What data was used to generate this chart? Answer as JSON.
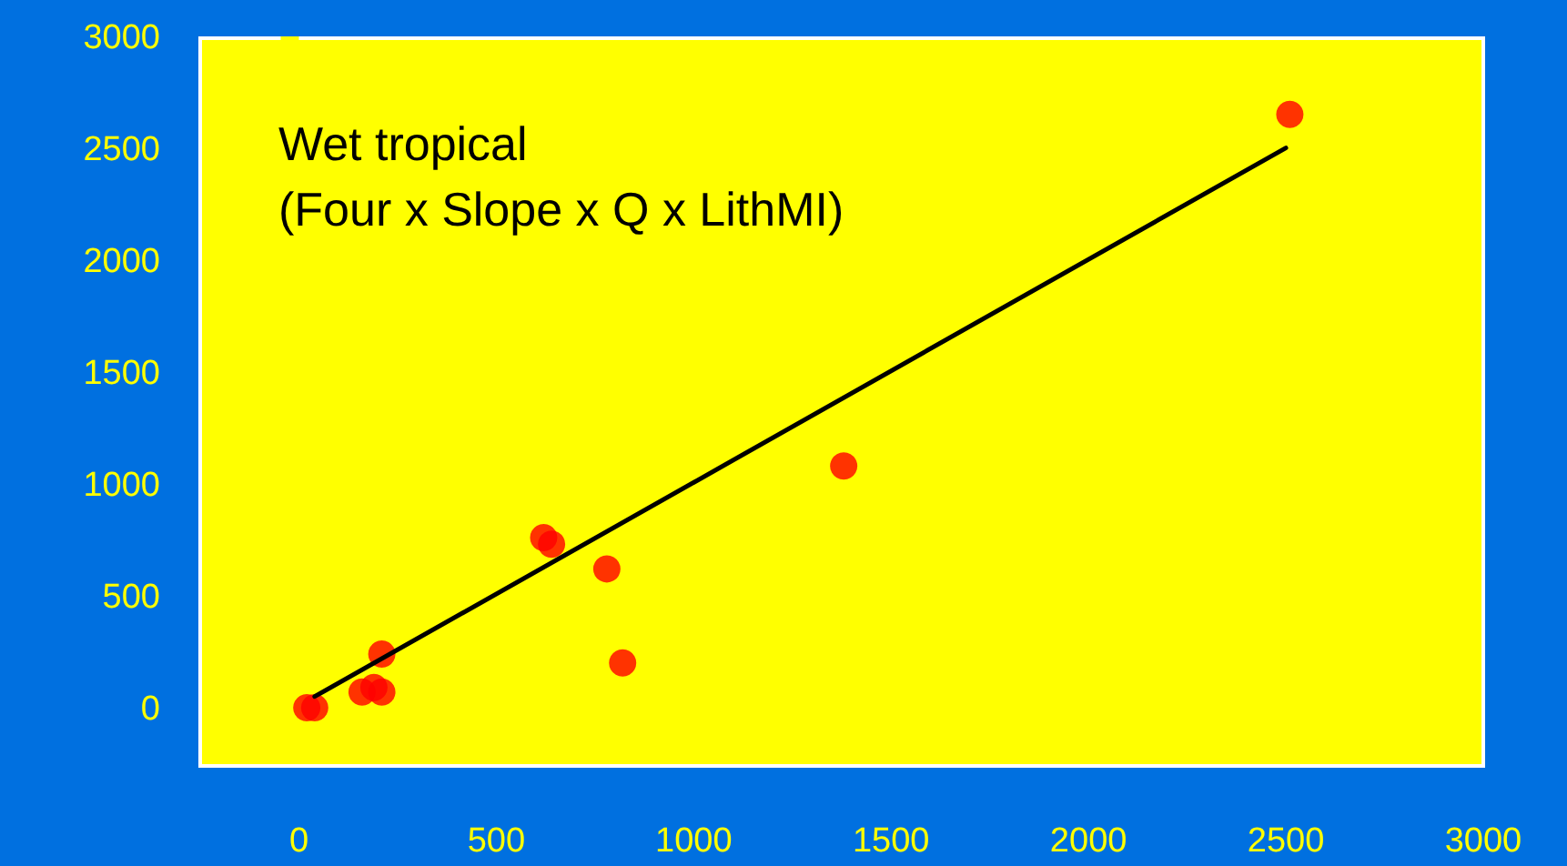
{
  "chart_data": {
    "type": "scatter",
    "title": "Wet tropical\n(Four x Slope x Q x LithMI)",
    "series": [
      {
        "color": "#ff0000",
        "marker": "circle",
        "x": [
          20,
          40,
          160,
          190,
          210,
          210,
          620,
          640,
          780,
          820,
          1380,
          2510
        ],
        "values": [
          10,
          10,
          80,
          100,
          80,
          250,
          770,
          740,
          630,
          210,
          1090,
          2660
        ]
      },
      {
        "type": "line",
        "color": "#000000",
        "x": [
          40,
          2500
        ],
        "values": [
          60,
          2510
        ]
      }
    ],
    "xlim": [
      -250,
      3000
    ],
    "xticks": [
      0,
      500,
      1000,
      1500,
      2000,
      2500,
      3000
    ],
    "ylim": [
      -250,
      3000
    ],
    "yticks": [
      0,
      500,
      1000,
      1500,
      2000,
      2500,
      3000
    ],
    "grid": false,
    "line_style": "solid"
  }
}
